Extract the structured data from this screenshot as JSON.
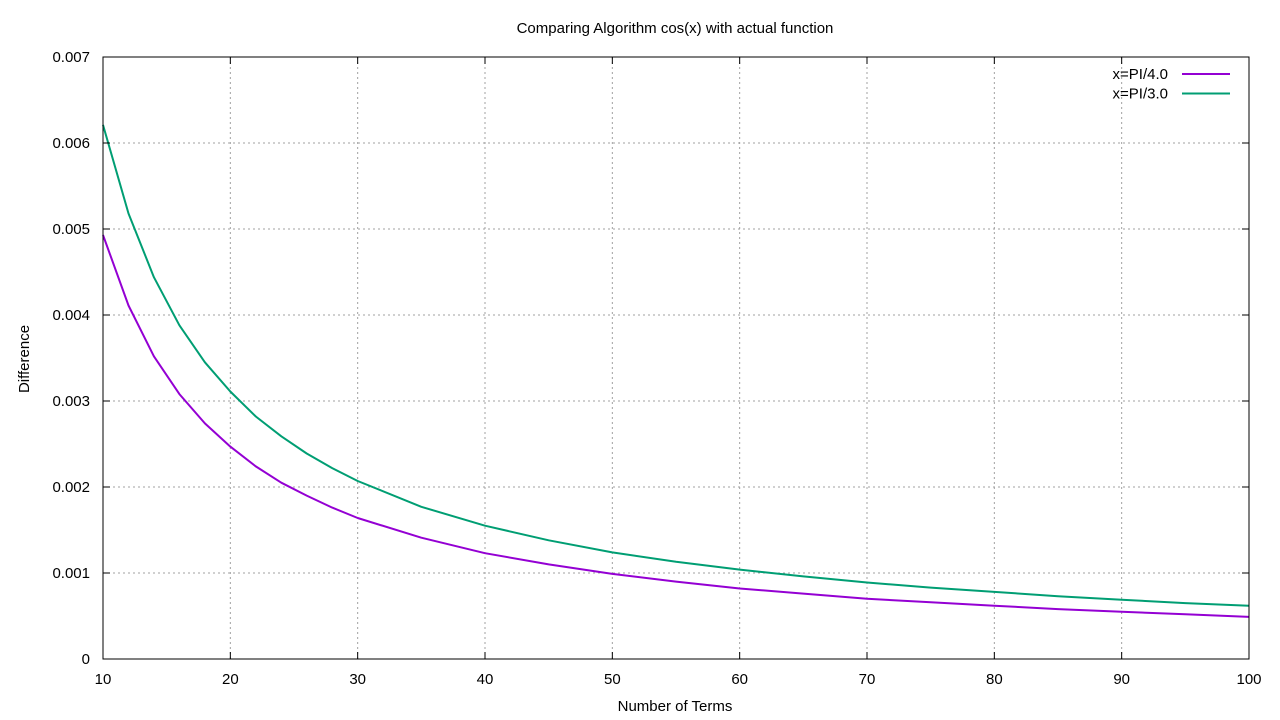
{
  "chart_data": {
    "type": "line",
    "title": "Comparing Algorithm cos(x) with actual function",
    "xlabel": "Number of Terms",
    "ylabel": "Difference",
    "xlim": [
      10,
      100
    ],
    "ylim": [
      0,
      0.007
    ],
    "x_ticks": [
      10,
      20,
      30,
      40,
      50,
      60,
      70,
      80,
      90,
      100
    ],
    "y_ticks": [
      0,
      0.001,
      0.002,
      0.003,
      0.004,
      0.005,
      0.006,
      0.007
    ],
    "y_tick_labels": [
      "0",
      "0.001",
      "0.002",
      "0.003",
      "0.004",
      "0.005",
      "0.006",
      "0.007"
    ],
    "grid": true,
    "legend_position": "top-right",
    "x": [
      10,
      12,
      14,
      16,
      18,
      20,
      22,
      24,
      26,
      28,
      30,
      35,
      40,
      45,
      50,
      55,
      60,
      65,
      70,
      75,
      80,
      85,
      90,
      95,
      100
    ],
    "series": [
      {
        "name": "x=PI/4.0",
        "color": "#9400d3",
        "values": [
          0.00493,
          0.00411,
          0.00352,
          0.00308,
          0.00274,
          0.00247,
          0.00224,
          0.00205,
          0.0019,
          0.00176,
          0.00164,
          0.00141,
          0.00123,
          0.0011,
          0.00099,
          0.0009,
          0.00082,
          0.00076,
          0.0007,
          0.00066,
          0.00062,
          0.00058,
          0.00055,
          0.00052,
          0.00049
        ]
      },
      {
        "name": "x=PI/3.0",
        "color": "#009e73",
        "values": [
          0.00621,
          0.00518,
          0.00444,
          0.00388,
          0.00345,
          0.00311,
          0.00282,
          0.00259,
          0.00239,
          0.00222,
          0.00207,
          0.00177,
          0.00155,
          0.00138,
          0.00124,
          0.00113,
          0.00104,
          0.00096,
          0.00089,
          0.00083,
          0.00078,
          0.00073,
          0.00069,
          0.00065,
          0.00062
        ]
      }
    ]
  }
}
